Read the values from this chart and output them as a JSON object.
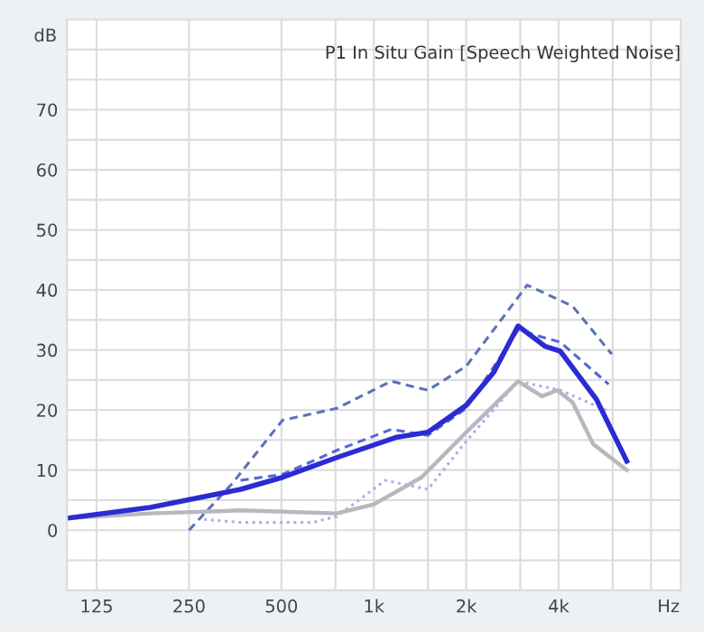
{
  "chart_data": {
    "type": "line",
    "title": "P1 In Situ Gain [Speech Weighted Noise]",
    "xlabel": "Hz",
    "ylabel": "dB",
    "log": "x",
    "grid": true,
    "marker": "none",
    "xlim": [
      100,
      10000
    ],
    "xticks": [
      125,
      250,
      500,
      {
        "value": 750,
        "label": null
      },
      {
        "value": 1000,
        "label": "1k"
      },
      {
        "value": 1500,
        "label": null
      },
      {
        "value": 2000,
        "label": "2k"
      },
      {
        "value": 3000,
        "label": null
      },
      {
        "value": 4000,
        "label": "4k"
      },
      {
        "value": 6000,
        "label": null
      },
      {
        "value": 8000,
        "label": null
      }
    ],
    "ylim": [
      -10,
      85
    ],
    "yticks": [
      {
        "value": -10,
        "label": null
      },
      {
        "value": -5,
        "label": null
      },
      0,
      {
        "value": 5,
        "label": null
      },
      10,
      {
        "value": 15,
        "label": null
      },
      20,
      {
        "value": 25,
        "label": null
      },
      30,
      {
        "value": 35,
        "label": null
      },
      40,
      {
        "value": 45,
        "label": null
      },
      50,
      {
        "value": 55,
        "label": null
      },
      60,
      {
        "value": 65,
        "label": null
      },
      70,
      {
        "value": 75,
        "label": null
      },
      {
        "value": 80,
        "label": null
      }
    ],
    "series": [
      {
        "color": "#5b73b5",
        "line_style": "dashed",
        "x": [
          250,
          346,
          504,
          758,
          1140,
          1500,
          2000,
          3160,
          4440,
          5960
        ],
        "values": [
          0,
          7.8,
          18.3,
          20.3,
          24.8,
          23.3,
          27.3,
          40.8,
          37.3,
          29.3
        ]
      },
      {
        "color": "#5566d6",
        "line_style": "dashed",
        "x": [
          368,
          504,
          758,
          1140,
          1500,
          2000,
          2950,
          4050,
          5820
        ],
        "values": [
          8.3,
          9.3,
          13.3,
          16.8,
          15.8,
          20.3,
          33.3,
          31.3,
          24.3
        ]
      },
      {
        "color": "#a3b3ea",
        "line_style": "dotted",
        "x": [
          280,
          368,
          633,
          758,
          1090,
          1500,
          2000,
          2950,
          4050,
          5820
        ],
        "values": [
          1.8,
          1.3,
          1.3,
          2.3,
          8.3,
          6.8,
          14.8,
          24.8,
          23.3,
          19.8
        ]
      },
      {
        "color": "#b7b7bf",
        "line_style": "solid",
        "x": [
          100,
          187,
          368,
          758,
          1000,
          1430,
          2000,
          2460,
          2950,
          3530,
          3960,
          4440,
          5190,
          6670
        ],
        "values": [
          2,
          2.8,
          3.3,
          2.8,
          4.3,
          8.8,
          16.3,
          20.8,
          24.8,
          22.3,
          23.3,
          21.3,
          14.3,
          10
        ]
      },
      {
        "color": "#2b2bd4",
        "line_style": "solid",
        "x": [
          100,
          187,
          368,
          504,
          758,
          1190,
          1500,
          2000,
          2460,
          2950,
          3620,
          4050,
          5310,
          6670
        ],
        "values": [
          2,
          3.8,
          6.8,
          8.8,
          12.1,
          15.5,
          16.3,
          20.8,
          26.3,
          34,
          30.6,
          29.8,
          21.8,
          11.5
        ]
      }
    ]
  }
}
